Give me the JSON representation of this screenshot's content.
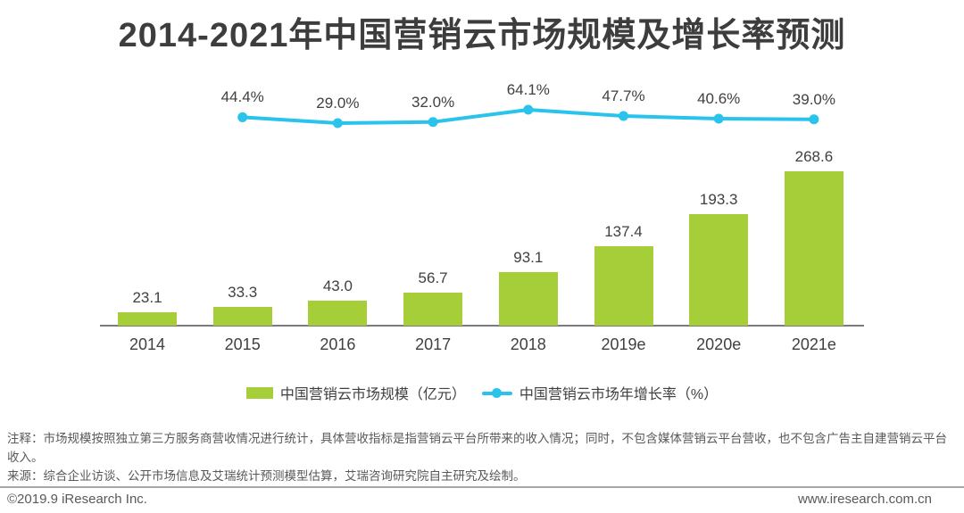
{
  "title": "2014-2021年中国营销云市场规模及增长率预测",
  "chart_data": {
    "type": "bar",
    "combo": "bar+line",
    "categories": [
      "2014",
      "2015",
      "2016",
      "2017",
      "2018",
      "2019e",
      "2020e",
      "2021e"
    ],
    "series": [
      {
        "name": "中国营销云市场规模（亿元）",
        "type": "bar",
        "color": "#A5CE39",
        "values": [
          23.1,
          33.3,
          43.0,
          56.7,
          93.1,
          137.4,
          193.3,
          268.6
        ]
      },
      {
        "name": "中国营销云市场年增长率（%）",
        "type": "line",
        "color": "#29C3EC",
        "values": [
          null,
          44.4,
          29.0,
          32.0,
          64.1,
          47.7,
          40.6,
          39.0
        ]
      }
    ],
    "title": "2014-2021年中国营销云市场规模及增长率预测",
    "xlabel": "",
    "ylabel": "",
    "data_labels": "all points labeled, one decimal; line labels suffixed with %",
    "grid": "off",
    "legend_position": "bottom"
  },
  "notes": {
    "annotation": "注释：市场规模按照独立第三方服务商营收情况进行统计，具体营收指标是指营销云平台所带来的收入情况；同时，不包含媒体营销云平台营收，也不包含广告主自建营销云平台收入。",
    "source": "来源：综合企业访谈、公开市场信息及艾瑞统计预测模型估算，艾瑞咨询研究院自主研究及绘制。"
  },
  "footer": {
    "copyright": "©2019.9 iResearch Inc.",
    "website": "www.iresearch.com.cn"
  },
  "colors": {
    "bar": "#A5CE39",
    "line": "#29C3EC",
    "title_text": "#3D3D3D",
    "label_text": "#404040",
    "muted_text": "#595959",
    "axis": "#7B7B7B"
  }
}
